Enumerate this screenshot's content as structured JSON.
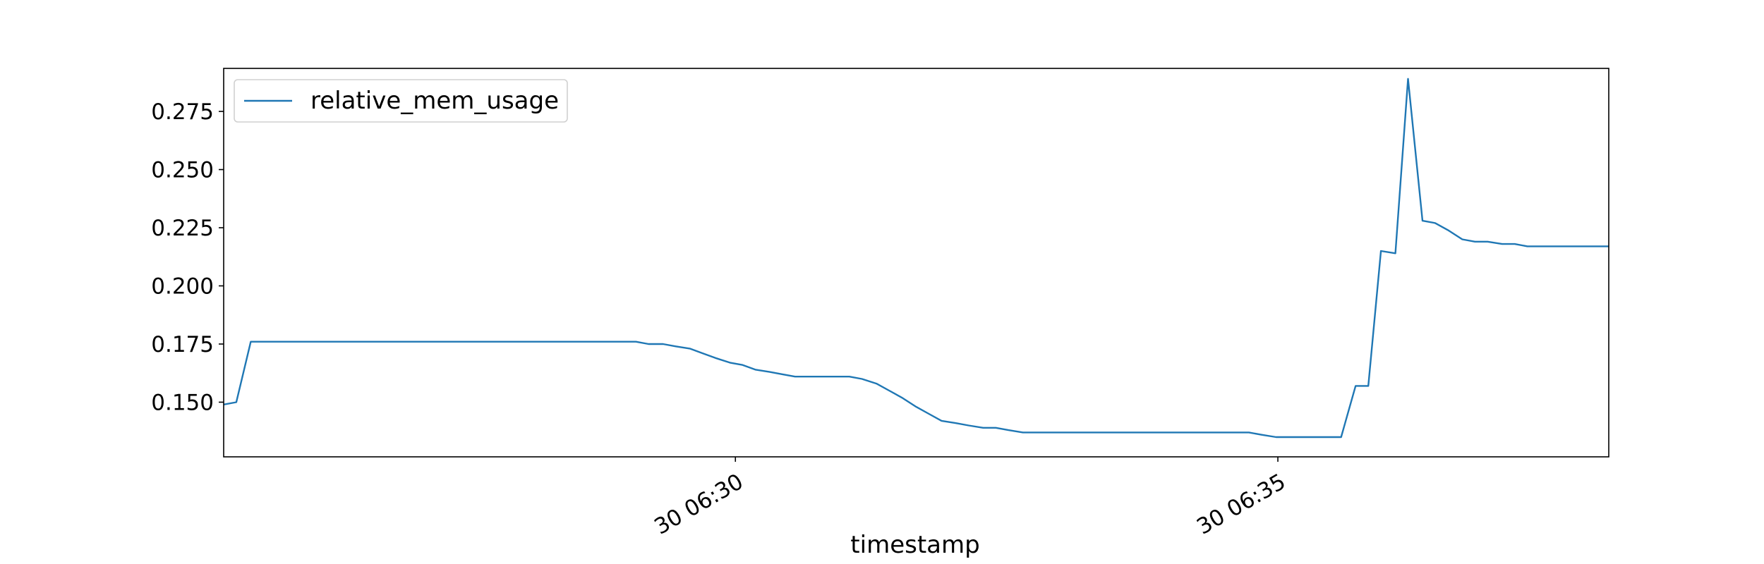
{
  "chart_data": {
    "type": "line",
    "title": "",
    "xlabel": "timestamp",
    "ylabel": "",
    "grid": false,
    "legend_placement": "top-left",
    "x_unit": "time (HH:MM:SS, day 30)",
    "x_ticks": [
      "30 06:30",
      "30 06:35"
    ],
    "x_tick_times": [
      "06:30:00",
      "06:35:00"
    ],
    "xlim": [
      "06:25:17",
      "06:38:03"
    ],
    "ylim": [
      0.1265,
      0.2935
    ],
    "y_ticks": [
      "0.150",
      "0.175",
      "0.200",
      "0.225",
      "0.250",
      "0.275"
    ],
    "y_tick_values": [
      0.15,
      0.175,
      0.2,
      0.225,
      0.25,
      0.275
    ],
    "series": [
      {
        "name": "relative_mem_usage",
        "color": "#1f77b4",
        "x": [
          "06:25:17",
          "06:25:24",
          "06:25:32",
          "06:25:39",
          "06:25:46",
          "06:25:54",
          "06:26:01",
          "06:26:08",
          "06:26:16",
          "06:26:23",
          "06:26:30",
          "06:26:38",
          "06:26:45",
          "06:26:52",
          "06:27:00",
          "06:27:07",
          "06:27:15",
          "06:27:22",
          "06:27:29",
          "06:27:37",
          "06:27:44",
          "06:27:51",
          "06:27:59",
          "06:28:06",
          "06:28:14",
          "06:28:21",
          "06:28:28",
          "06:28:36",
          "06:28:43",
          "06:28:50",
          "06:28:58",
          "06:29:05",
          "06:29:12",
          "06:29:20",
          "06:29:27",
          "06:29:35",
          "06:29:42",
          "06:29:49",
          "06:29:57",
          "06:30:04",
          "06:30:11",
          "06:30:19",
          "06:30:26",
          "06:30:33",
          "06:30:41",
          "06:30:48",
          "06:30:56",
          "06:31:03",
          "06:31:10",
          "06:31:18",
          "06:31:25",
          "06:31:32",
          "06:31:40",
          "06:31:47",
          "06:31:54",
          "06:32:02",
          "06:32:09",
          "06:32:17",
          "06:32:24",
          "06:32:31",
          "06:32:39",
          "06:32:46",
          "06:32:53",
          "06:33:01",
          "06:33:08",
          "06:33:15",
          "06:33:23",
          "06:33:30",
          "06:33:38",
          "06:33:45",
          "06:33:52",
          "06:34:00",
          "06:34:07",
          "06:34:14",
          "06:34:22",
          "06:34:29",
          "06:34:36",
          "06:34:44",
          "06:34:51",
          "06:34:59",
          "06:35:06",
          "06:35:13",
          "06:35:21",
          "06:35:28",
          "06:35:35",
          "06:35:43",
          "06:35:50",
          "06:35:57",
          "06:36:05",
          "06:36:12",
          "06:36:20",
          "06:36:27",
          "06:36:34",
          "06:36:42",
          "06:36:49",
          "06:36:56",
          "06:37:04",
          "06:37:11",
          "06:37:18",
          "06:37:26",
          "06:37:33",
          "06:37:41",
          "06:37:48",
          "06:37:55",
          "06:38:03"
        ],
        "values": [
          0.149,
          0.15,
          0.176,
          0.176,
          0.176,
          0.176,
          0.176,
          0.176,
          0.176,
          0.176,
          0.176,
          0.176,
          0.176,
          0.176,
          0.176,
          0.176,
          0.176,
          0.176,
          0.176,
          0.176,
          0.176,
          0.176,
          0.176,
          0.176,
          0.176,
          0.176,
          0.176,
          0.176,
          0.176,
          0.176,
          0.176,
          0.176,
          0.175,
          0.175,
          0.174,
          0.173,
          0.171,
          0.169,
          0.167,
          0.166,
          0.164,
          0.163,
          0.162,
          0.161,
          0.161,
          0.161,
          0.161,
          0.161,
          0.16,
          0.158,
          0.155,
          0.152,
          0.148,
          0.145,
          0.142,
          0.141,
          0.14,
          0.139,
          0.139,
          0.138,
          0.137,
          0.137,
          0.137,
          0.137,
          0.137,
          0.137,
          0.137,
          0.137,
          0.137,
          0.137,
          0.137,
          0.137,
          0.137,
          0.137,
          0.137,
          0.137,
          0.137,
          0.137,
          0.136,
          0.135,
          0.135,
          0.135,
          0.135,
          0.135,
          0.135,
          0.157,
          0.157,
          0.215,
          0.214,
          0.289,
          0.228,
          0.227,
          0.224,
          0.22,
          0.219,
          0.219,
          0.218,
          0.218,
          0.217,
          0.217,
          0.217,
          0.217,
          0.217,
          0.217,
          0.217
        ]
      }
    ]
  }
}
